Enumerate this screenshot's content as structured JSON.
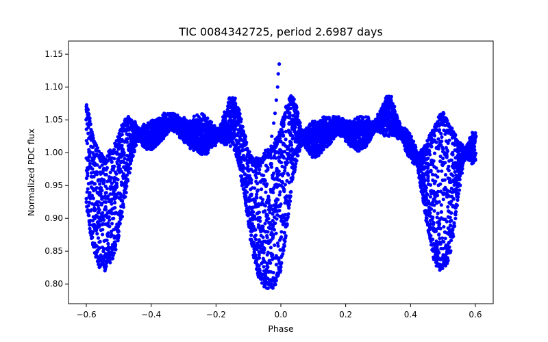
{
  "chart_data": {
    "type": "scatter",
    "title": "TIC 0084342725, period 2.6987 days",
    "xlabel": "Phase",
    "ylabel": "Normalized PDC flux",
    "xlim": [
      -0.655,
      0.655
    ],
    "ylim": [
      0.77,
      1.17
    ],
    "xticks": [
      -0.6,
      -0.4,
      -0.2,
      0.0,
      0.2,
      0.4,
      0.6
    ],
    "xtick_labels": [
      "−0.6",
      "−0.4",
      "−0.2",
      "0.0",
      "0.2",
      "0.4",
      "0.6"
    ],
    "yticks": [
      0.8,
      0.85,
      0.9,
      0.95,
      1.0,
      1.05,
      1.1,
      1.15
    ],
    "ytick_labels": [
      "0.80",
      "0.85",
      "0.90",
      "0.95",
      "1.00",
      "1.05",
      "1.10",
      "1.15"
    ],
    "grid": false,
    "legend": false,
    "series": [
      {
        "marker_color": "#0000ff",
        "x": [
          -0.6,
          -0.59,
          -0.58,
          -0.57,
          -0.56,
          -0.55,
          -0.54,
          -0.53,
          -0.52,
          -0.51,
          -0.5,
          -0.49,
          -0.48,
          -0.47,
          -0.46,
          -0.45,
          -0.44,
          -0.43,
          -0.42,
          -0.41,
          -0.4,
          -0.39,
          -0.38,
          -0.37,
          -0.36,
          -0.35,
          -0.34,
          -0.33,
          -0.32,
          -0.31,
          -0.3,
          -0.29,
          -0.28,
          -0.27,
          -0.26,
          -0.25,
          -0.24,
          -0.23,
          -0.22,
          -0.21,
          -0.2,
          -0.19,
          -0.18,
          -0.17,
          -0.16,
          -0.15,
          -0.14,
          -0.13,
          -0.12,
          -0.11,
          -0.1,
          -0.09,
          -0.08,
          -0.07,
          -0.06,
          -0.05,
          -0.04,
          -0.03,
          -0.02,
          -0.01,
          0.0,
          0.01,
          0.02,
          0.03,
          0.04,
          0.05,
          0.06,
          0.07,
          0.08,
          0.09,
          0.1,
          0.11,
          0.12,
          0.13,
          0.14,
          0.15,
          0.16,
          0.17,
          0.18,
          0.19,
          0.2,
          0.21,
          0.22,
          0.23,
          0.24,
          0.25,
          0.26,
          0.27,
          0.28,
          0.29,
          0.3,
          0.31,
          0.32,
          0.33,
          0.34,
          0.35,
          0.36,
          0.37,
          0.38,
          0.39,
          0.4,
          0.41,
          0.42,
          0.43,
          0.44,
          0.45,
          0.46,
          0.47,
          0.48,
          0.49,
          0.5,
          0.51,
          0.52,
          0.53,
          0.54,
          0.55,
          0.56,
          0.57,
          0.58,
          0.59,
          0.6
        ],
        "y_deep": [
          0.93,
          0.89,
          0.86,
          0.845,
          0.835,
          0.83,
          0.83,
          0.835,
          0.845,
          0.86,
          0.88,
          0.91,
          0.94,
          0.97,
          0.995,
          1.015,
          1.025,
          1.03,
          1.035,
          1.035,
          1.04,
          1.04,
          1.045,
          1.045,
          1.05,
          1.05,
          1.05,
          1.05,
          1.05,
          1.045,
          1.045,
          1.045,
          1.045,
          1.045,
          1.05,
          1.05,
          1.05,
          1.045,
          1.04,
          1.035,
          1.03,
          1.025,
          1.02,
          1.02,
          1.02,
          1.02,
          1.01,
          0.99,
          0.96,
          0.93,
          0.895,
          0.865,
          0.84,
          0.82,
          0.81,
          0.805,
          0.8,
          0.8,
          0.805,
          0.815,
          0.83,
          0.86,
          0.9,
          0.94,
          0.975,
          1.0,
          1.015,
          1.025,
          1.03,
          1.035,
          1.04,
          1.04,
          1.04,
          1.045,
          1.045,
          1.045,
          1.045,
          1.045,
          1.045,
          1.045,
          1.04,
          1.04,
          1.04,
          1.045,
          1.045,
          1.045,
          1.045,
          1.045,
          1.04,
          1.04,
          1.04,
          1.04,
          1.035,
          1.035,
          1.035,
          1.035,
          1.03,
          1.03,
          1.03,
          1.025,
          1.02,
          1.01,
          0.99,
          0.96,
          0.93,
          0.9,
          0.87,
          0.85,
          0.835,
          0.83,
          0.83,
          0.835,
          0.85,
          0.875,
          0.91,
          0.95,
          0.98,
          1.0,
          1.01,
          1.02,
          1.03
        ],
        "y_shallow": [
          1.07,
          1.05,
          1.02,
          1.005,
          0.995,
          0.99,
          0.99,
          0.995,
          1.0,
          1.01,
          1.02,
          1.035,
          1.045,
          1.05,
          1.045,
          1.04,
          1.03,
          1.02,
          1.015,
          1.01,
          1.01,
          1.015,
          1.02,
          1.025,
          1.03,
          1.035,
          1.04,
          1.04,
          1.035,
          1.03,
          1.025,
          1.02,
          1.015,
          1.01,
          1.01,
          1.005,
          1.005,
          1.005,
          1.01,
          1.015,
          1.02,
          1.03,
          1.045,
          1.06,
          1.075,
          1.08,
          1.075,
          1.06,
          1.04,
          1.02,
          1.0,
          0.99,
          0.985,
          0.985,
          0.99,
          0.995,
          1.0,
          1.005,
          1.01,
          1.02,
          1.035,
          1.055,
          1.07,
          1.08,
          1.075,
          1.06,
          1.04,
          1.02,
          1.01,
          1.005,
          1.0,
          1.0,
          1.005,
          1.01,
          1.015,
          1.02,
          1.025,
          1.03,
          1.035,
          1.03,
          1.025,
          1.02,
          1.015,
          1.01,
          1.01,
          1.01,
          1.015,
          1.02,
          1.03,
          1.04,
          1.05,
          1.06,
          1.075,
          1.085,
          1.08,
          1.065,
          1.045,
          1.03,
          1.015,
          1.005,
          0.995,
          0.99,
          0.99,
          0.995,
          1.0,
          1.01,
          1.02,
          1.03,
          1.04,
          1.05,
          1.055,
          1.05,
          1.04,
          1.03,
          1.02,
          1.01,
          1.005,
          1.0,
          0.995,
          0.99,
          0.99
        ],
        "spike_points": [
          [
            -0.005,
            1.135
          ],
          [
            -0.008,
            1.12
          ],
          [
            -0.01,
            1.1
          ],
          [
            -0.014,
            1.08
          ],
          [
            -0.018,
            1.06
          ],
          [
            -0.022,
            1.045
          ],
          [
            -0.028,
            1.025
          ]
        ]
      }
    ]
  }
}
